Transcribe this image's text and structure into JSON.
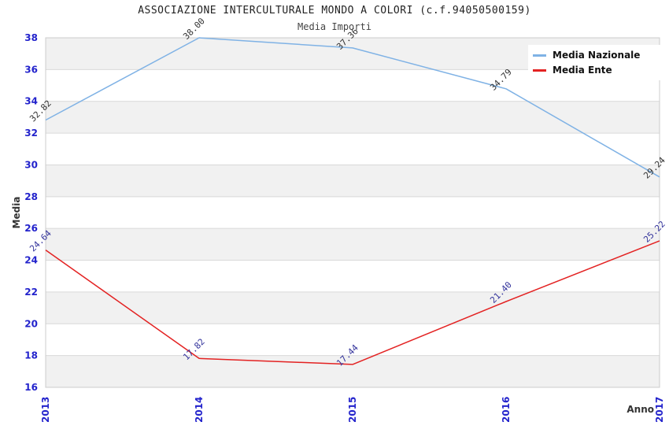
{
  "header": {
    "title": "ASSOCIAZIONE INTERCULTURALE MONDO A COLORI (c.f.94050500159)",
    "subtitle": "Media Importi"
  },
  "chart_data": {
    "type": "line",
    "x": [
      2013,
      2014,
      2015,
      2016,
      2017
    ],
    "series": [
      {
        "name": "Media Nazionale",
        "color": "#7fb2e5",
        "label_color": "#333333",
        "values": [
          32.82,
          38.0,
          37.36,
          34.79,
          29.24
        ]
      },
      {
        "name": "Media Ente",
        "color": "#e32222",
        "label_color": "#32329b",
        "values": [
          24.64,
          17.82,
          17.44,
          21.4,
          25.22
        ]
      }
    ],
    "xlabel": "Anno",
    "ylabel": "Media",
    "ylim": [
      16,
      38
    ],
    "ytick_step": 2,
    "grid": "horizontal-alternating-bands",
    "band_color": "#f1f1f1",
    "grid_line_color": "#d9d9d9",
    "plot_border_color": "#cccccc",
    "tick_label_color": "#2323cc",
    "legend_position": "top-right"
  }
}
